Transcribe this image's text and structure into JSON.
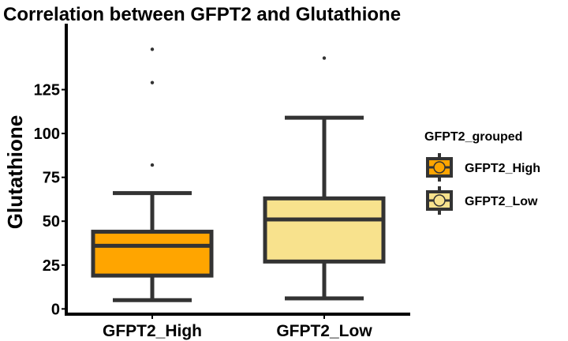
{
  "chart_data": {
    "type": "box",
    "title": "Correlation between GFPT2 and Glutathione",
    "xlabel": "",
    "ylabel": "Glutathione",
    "yticks": [
      0,
      25,
      50,
      75,
      100,
      125
    ],
    "ylim": [
      -3,
      159
    ],
    "legend": {
      "title": "GFPT2_grouped",
      "position": "right"
    },
    "series": [
      {
        "name": "GFPT2_High",
        "color": "#FFA500",
        "whisker_low": 5,
        "q1": 19,
        "median": 36,
        "q3": 44,
        "whisker_high": 66,
        "outliers": [
          82,
          129,
          148
        ]
      },
      {
        "name": "GFPT2_Low",
        "color": "#F8E28D",
        "whisker_low": 6,
        "q1": 27,
        "median": 51,
        "q3": 63,
        "whisker_high": 109,
        "outliers": [
          143
        ]
      }
    ]
  }
}
